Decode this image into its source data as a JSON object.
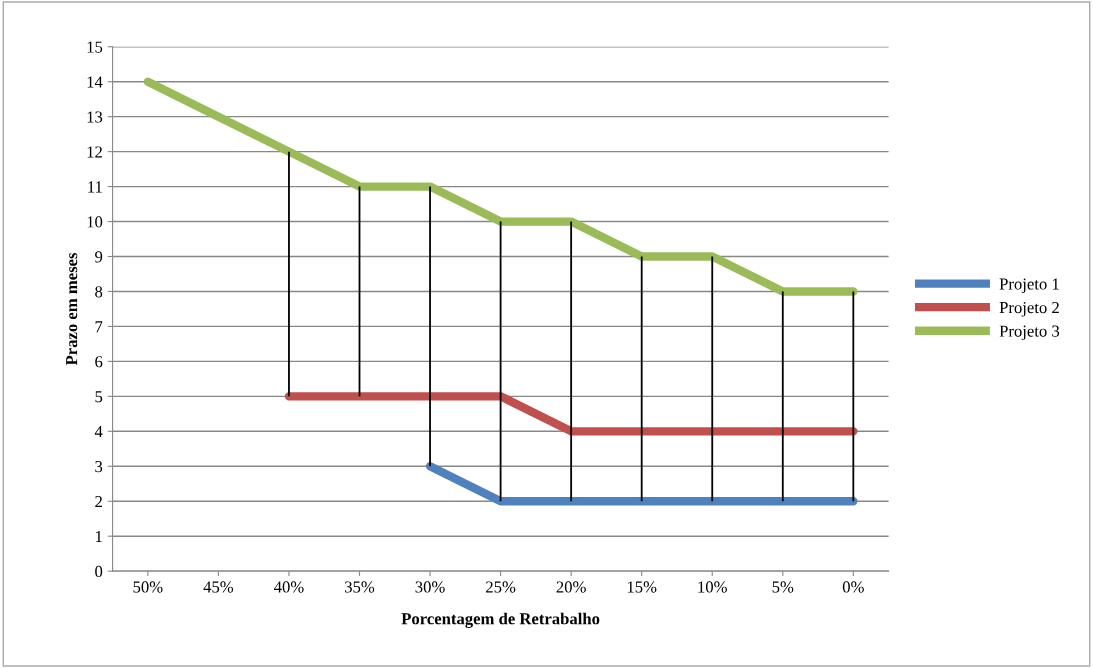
{
  "chart_data": {
    "type": "line",
    "xlabel": "Porcentagem de Retrabalho",
    "ylabel": "Prazo em meses",
    "categories": [
      "50%",
      "45%",
      "40%",
      "35%",
      "30%",
      "25%",
      "20%",
      "15%",
      "10%",
      "5%",
      "0%"
    ],
    "series": [
      {
        "name": "Projeto 1",
        "color": "#4f81bd",
        "values": [
          null,
          null,
          null,
          null,
          3,
          2,
          2,
          2,
          2,
          2,
          2
        ]
      },
      {
        "name": "Projeto 2",
        "color": "#c0504d",
        "values": [
          null,
          null,
          5,
          5,
          5,
          5,
          4,
          4,
          4,
          4,
          4
        ]
      },
      {
        "name": "Projeto 3",
        "color": "#9bbb59",
        "values": [
          14,
          13,
          12,
          11,
          11,
          10,
          10,
          9,
          9,
          8,
          8
        ],
        "errors": [
          null,
          null,
          [
            5,
            12
          ],
          [
            5,
            11
          ],
          [
            3,
            11
          ],
          [
            2,
            10
          ],
          [
            2,
            10
          ],
          [
            2,
            9
          ],
          [
            2,
            9
          ],
          [
            2,
            8
          ],
          [
            2,
            8
          ]
        ]
      }
    ],
    "ylim": [
      0,
      15
    ],
    "yticks": [
      0,
      1,
      2,
      3,
      4,
      5,
      6,
      7,
      8,
      9,
      10,
      11,
      12,
      13,
      14,
      15
    ],
    "grid": "y",
    "legend": "right",
    "marker": "none",
    "line_style": "solid"
  }
}
